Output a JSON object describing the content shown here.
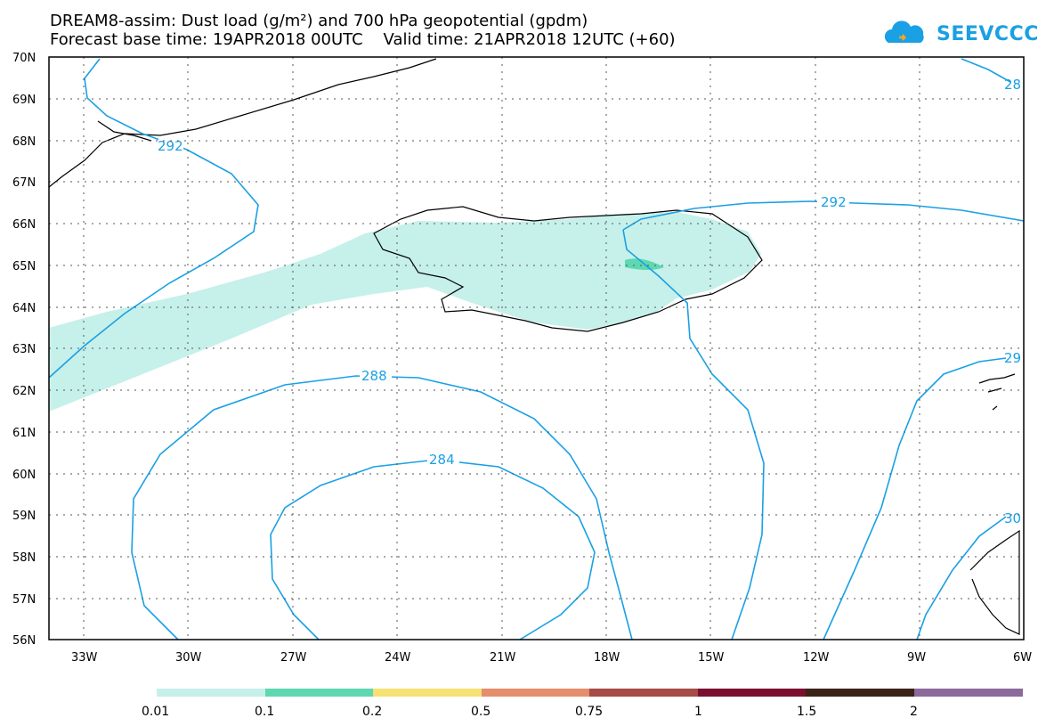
{
  "title": {
    "line1": "DREAM8-assim: Dust load (g/m²) and 700 hPa geopotential (gpdm)",
    "line2": "Forecast base time: 19APR2018 00UTC    Valid time: 21APR2018 12UTC (+60)"
  },
  "logo": {
    "text": "SEEVCCC",
    "icon": "cloud-icon"
  },
  "map": {
    "lat_labels": [
      "70N",
      "69N",
      "68N",
      "67N",
      "66N",
      "65N",
      "64N",
      "63N",
      "62N",
      "61N",
      "60N",
      "59N",
      "58N",
      "57N",
      "56N"
    ],
    "lon_labels": [
      "33W",
      "30W",
      "27W",
      "24W",
      "21W",
      "18W",
      "15W",
      "12W",
      "9W",
      "6W"
    ],
    "contour_labels": [
      "292",
      "292",
      "288",
      "284",
      "28",
      "29",
      "30"
    ],
    "colors": {
      "contour": "#1aa0e4",
      "dust_low": "#c6f0ea",
      "dust_mid": "#5ed8b0"
    }
  },
  "legend": {
    "labels": [
      "0.01",
      "0.1",
      "0.2",
      "0.5",
      "0.75",
      "1",
      "1.5",
      "2"
    ],
    "colors": [
      "#c6f0ea",
      "#5ed8b0",
      "#f5e273",
      "#e58e6b",
      "#a64b45",
      "#7a1030",
      "#3b2318",
      "#8c6a9c"
    ]
  }
}
